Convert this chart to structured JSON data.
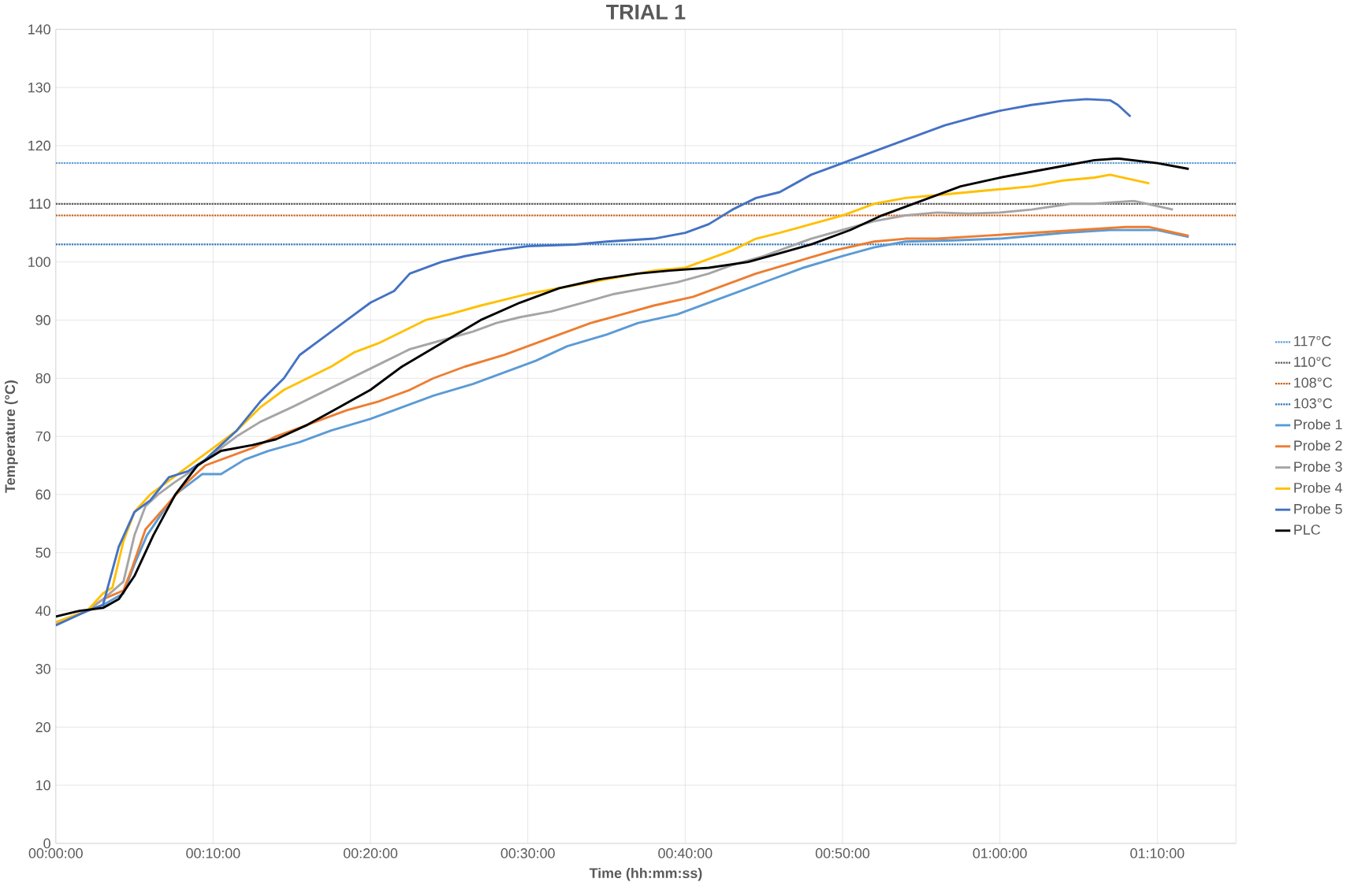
{
  "chart_data": {
    "type": "line",
    "title": "TRIAL 1",
    "xlabel": "Time (hh:mm:ss)",
    "ylabel": "Temperature (°C)",
    "xlim": [
      0,
      75
    ],
    "ylim": [
      0,
      140
    ],
    "xticks": [
      {
        "value": 0,
        "label": "00:00:00"
      },
      {
        "value": 10,
        "label": "00:10:00"
      },
      {
        "value": 20,
        "label": "00:20:00"
      },
      {
        "value": 30,
        "label": "00:30:00"
      },
      {
        "value": 40,
        "label": "00:40:00"
      },
      {
        "value": 50,
        "label": "00:50:00"
      },
      {
        "value": 60,
        "label": "01:00:00"
      },
      {
        "value": 70,
        "label": "01:10:00"
      }
    ],
    "yticks": [
      0,
      10,
      20,
      30,
      40,
      50,
      60,
      70,
      80,
      90,
      100,
      110,
      120,
      130,
      140
    ],
    "grid": true,
    "legend": "right",
    "line_style": "solid",
    "ref_lines": [
      {
        "axis": "y",
        "value": 117,
        "label": "117°C",
        "color": "#5b9bd5",
        "line_style": "dotted"
      },
      {
        "axis": "y",
        "value": 110,
        "label": "110°C",
        "color": "#595959",
        "line_style": "dotted"
      },
      {
        "axis": "y",
        "value": 108,
        "label": "108°C",
        "color": "#c55a11",
        "line_style": "dotted"
      },
      {
        "axis": "y",
        "value": 103,
        "label": "103°C",
        "color": "#2e75b6",
        "line_style": "dotted"
      }
    ],
    "series": [
      {
        "name": "Probe 1",
        "color": "#5b9bd5",
        "x": [
          0,
          1.5,
          3,
          4.3,
          5,
          5.8,
          6.8,
          7.6,
          9.3,
          10.5,
          12,
          13.5,
          15.5,
          17.5,
          20,
          22,
          24,
          26.5,
          28.5,
          30.5,
          32.5,
          35,
          37,
          39.5,
          41.5,
          43.5,
          45.5,
          47.5,
          50,
          52,
          54,
          57,
          60,
          64,
          67,
          70,
          72
        ],
        "values": [
          37.5,
          39.5,
          41,
          43,
          48,
          53,
          57,
          60,
          63.5,
          63.5,
          66,
          67.5,
          69,
          71,
          73,
          75,
          77,
          79,
          81,
          83,
          85.5,
          87.5,
          89.5,
          91,
          93,
          95,
          97,
          99,
          101,
          102.5,
          103.5,
          103.7,
          104,
          105,
          105.5,
          105.5,
          104.3
        ]
      },
      {
        "name": "Probe 2",
        "color": "#ed7d31",
        "x": [
          0,
          2,
          3,
          4.3,
          4.8,
          5.7,
          7,
          8.3,
          9.5,
          11,
          12.5,
          14,
          15.5,
          17,
          18.5,
          20.5,
          22.5,
          24,
          26,
          28.5,
          30.5,
          32.5,
          34,
          36,
          38,
          40.5,
          42.5,
          44.5,
          47,
          49.5,
          52,
          54,
          56,
          59,
          62,
          65,
          68,
          69.5,
          72
        ],
        "values": [
          38,
          40,
          42,
          43.5,
          47,
          54,
          58,
          62,
          65,
          66.5,
          68,
          70,
          71.5,
          73,
          74.5,
          76,
          78,
          80,
          82,
          84,
          86,
          88,
          89.5,
          91,
          92.5,
          94,
          96,
          98,
          100,
          102,
          103.5,
          104,
          104,
          104.5,
          105,
          105.5,
          106,
          106,
          104.5
        ]
      },
      {
        "name": "Probe 3",
        "color": "#a5a5a5",
        "x": [
          0,
          2,
          3,
          4.3,
          5,
          5.7,
          6.5,
          7.5,
          8.6,
          10,
          11.5,
          13,
          15,
          16.5,
          18,
          19.5,
          21,
          22.5,
          24.5,
          26.5,
          28,
          29.5,
          31.5,
          33.5,
          35.5,
          37.5,
          39.5,
          41.5,
          43,
          45,
          46.5,
          48,
          50,
          52,
          54,
          56,
          58,
          60,
          62,
          64.5,
          66,
          68.5,
          71
        ],
        "values": [
          38,
          40,
          42,
          45,
          53,
          58,
          60,
          62,
          64,
          67,
          70,
          72.5,
          75,
          77,
          79,
          81,
          83,
          85,
          86.5,
          88,
          89.5,
          90.5,
          91.5,
          93,
          94.5,
          95.5,
          96.5,
          98,
          99.5,
          101,
          102.5,
          104,
          105.5,
          107,
          108,
          108.5,
          108.3,
          108.5,
          109,
          110,
          110,
          110.5,
          109
        ]
      },
      {
        "name": "Probe 4",
        "color": "#ffc000",
        "x": [
          0,
          2,
          3,
          3.6,
          4.3,
          5,
          6,
          7,
          8,
          9,
          10,
          11.5,
          13,
          14.5,
          16,
          17.5,
          19,
          20.5,
          22,
          23.5,
          25,
          27,
          28.5,
          30,
          32,
          34,
          36,
          38,
          40,
          41.5,
          43,
          44.5,
          46,
          48,
          50,
          52,
          54,
          56,
          58,
          60,
          62,
          64,
          66,
          67,
          69.5
        ],
        "values": [
          38,
          40,
          43,
          44,
          52,
          57,
          60,
          62,
          64,
          66,
          68,
          71,
          75,
          78,
          80,
          82,
          84.5,
          86,
          88,
          90,
          91,
          92.5,
          93.5,
          94.5,
          95.5,
          96.5,
          97.5,
          98.5,
          99,
          100.5,
          102,
          104,
          105,
          106.5,
          108,
          110,
          111,
          111.5,
          112,
          112.5,
          113,
          114,
          114.5,
          115,
          113.5
        ]
      },
      {
        "name": "Probe 5",
        "color": "#4472c4",
        "x": [
          0,
          2,
          3,
          4,
          5,
          6,
          7.2,
          8.4,
          9.5,
          10.5,
          11.5,
          13,
          14.5,
          15.5,
          17,
          18.5,
          20,
          21.5,
          22.5,
          24.5,
          26,
          28,
          30,
          33,
          35,
          38,
          40,
          41.5,
          43,
          44.5,
          46,
          48,
          49.5,
          51,
          53,
          55,
          56.5,
          58.5,
          60,
          62,
          64,
          65.5,
          67,
          67.5,
          68.3
        ],
        "values": [
          37.5,
          40,
          41,
          51,
          57,
          59,
          63,
          64,
          66,
          68.5,
          71,
          76,
          80,
          84,
          87,
          90,
          93,
          95,
          98,
          100,
          101,
          102,
          102.7,
          103,
          103.5,
          104,
          105,
          106.5,
          109,
          111,
          112,
          115,
          116.5,
          118,
          120,
          122,
          123.5,
          125,
          126,
          127,
          127.7,
          128,
          127.8,
          127,
          125
        ]
      },
      {
        "name": "PLC",
        "color": "#000000",
        "x": [
          0,
          1.5,
          3,
          4,
          5,
          6.2,
          7.6,
          9,
          10.5,
          12.5,
          14,
          16,
          18,
          20,
          22,
          24.5,
          27,
          29.5,
          32,
          34.5,
          37,
          39,
          41.5,
          44,
          46,
          48,
          50.5,
          52.5,
          55,
          57.5,
          60,
          63,
          66,
          67.5,
          70,
          72
        ],
        "values": [
          39,
          40,
          40.5,
          42,
          46,
          53,
          60,
          65,
          67.5,
          68.5,
          69.5,
          72,
          75,
          78,
          82,
          86,
          90,
          93,
          95.5,
          97,
          98,
          98.5,
          99,
          100,
          101.5,
          103,
          105.5,
          108,
          110.5,
          113,
          114.5,
          116,
          117.5,
          117.8,
          117,
          116
        ]
      }
    ]
  }
}
